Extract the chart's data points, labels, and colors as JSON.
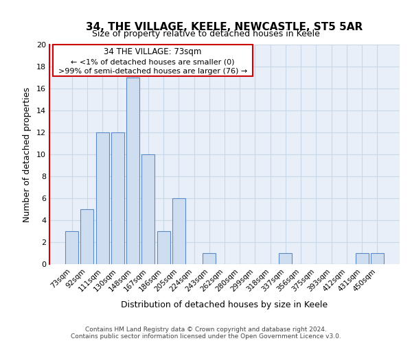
{
  "title": "34, THE VILLAGE, KEELE, NEWCASTLE, ST5 5AR",
  "subtitle": "Size of property relative to detached houses in Keele",
  "xlabel": "Distribution of detached houses by size in Keele",
  "ylabel": "Number of detached properties",
  "bar_labels": [
    "73sqm",
    "92sqm",
    "111sqm",
    "130sqm",
    "148sqm",
    "167sqm",
    "186sqm",
    "205sqm",
    "224sqm",
    "243sqm",
    "262sqm",
    "280sqm",
    "299sqm",
    "318sqm",
    "337sqm",
    "356sqm",
    "375sqm",
    "393sqm",
    "412sqm",
    "431sqm",
    "450sqm"
  ],
  "bar_values": [
    3,
    5,
    12,
    12,
    17,
    10,
    3,
    6,
    0,
    1,
    0,
    0,
    0,
    0,
    1,
    0,
    0,
    0,
    0,
    1,
    1
  ],
  "bar_color": "#cfddf0",
  "bar_edge_color": "#5a8ac6",
  "ylim": [
    0,
    20
  ],
  "yticks": [
    0,
    2,
    4,
    6,
    8,
    10,
    12,
    14,
    16,
    18,
    20
  ],
  "annotation_title": "34 THE VILLAGE: 73sqm",
  "annotation_line1": "← <1% of detached houses are smaller (0)",
  "annotation_line2": ">99% of semi-detached houses are larger (76) →",
  "annotation_box_facecolor": "#ffffff",
  "annotation_box_edgecolor": "#cc0000",
  "footer_line1": "Contains HM Land Registry data © Crown copyright and database right 2024.",
  "footer_line2": "Contains public sector information licensed under the Open Government Licence v3.0.",
  "background_color": "#ffffff",
  "grid_color": "#c8d8e8",
  "plot_bg_color": "#e8eff8"
}
